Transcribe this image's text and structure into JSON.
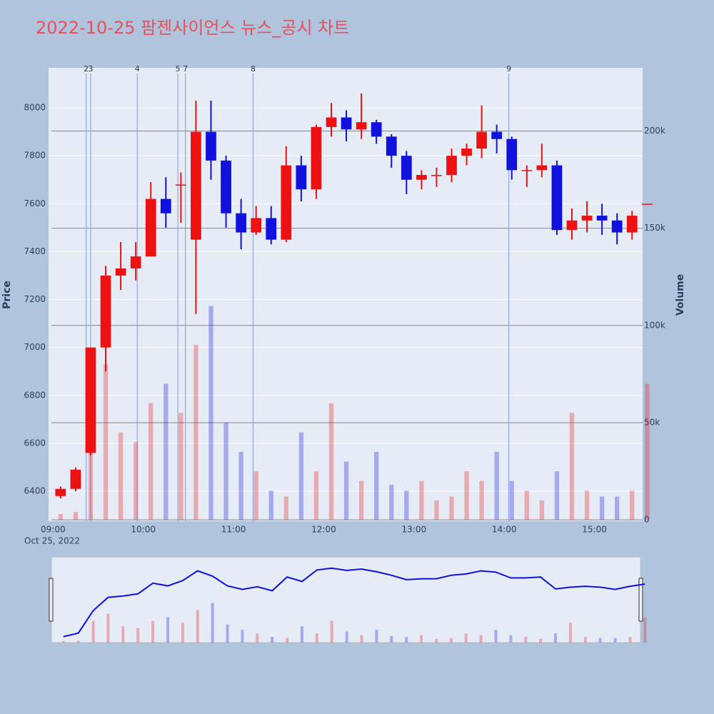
{
  "chart_data": {
    "type": "candlestick",
    "title": "2022-10-25 팜젠사이언스 뉴스_공시 차트",
    "y_label": "Price",
    "y2_label": "Volume",
    "x_date_label": "Oct 25, 2022",
    "x": [
      "09:00",
      "09:10",
      "09:20",
      "09:30",
      "09:40",
      "09:50",
      "10:00",
      "10:10",
      "10:20",
      "10:30",
      "10:40",
      "10:50",
      "11:00",
      "11:10",
      "11:20",
      "11:30",
      "11:40",
      "11:50",
      "12:00",
      "12:10",
      "12:20",
      "12:30",
      "12:40",
      "12:50",
      "13:00",
      "13:10",
      "13:20",
      "13:30",
      "13:40",
      "13:50",
      "14:00",
      "14:10",
      "14:20",
      "14:30",
      "14:40",
      "14:50",
      "15:00",
      "15:10",
      "15:20",
      "15:30"
    ],
    "open": [
      6380,
      6410,
      6560,
      7000,
      7300,
      7330,
      7380,
      7620,
      7680,
      7450,
      7900,
      7780,
      7560,
      7480,
      7540,
      7450,
      7760,
      7660,
      7920,
      7960,
      7910,
      7940,
      7880,
      7800,
      7700,
      7720,
      7720,
      7800,
      7830,
      7900,
      7870,
      7740,
      7740,
      7760,
      7490,
      7530,
      7550,
      7530,
      7480,
      7600
    ],
    "high": [
      6420,
      6500,
      7000,
      7340,
      7440,
      7440,
      7690,
      7710,
      7730,
      8030,
      8030,
      7800,
      7620,
      7590,
      7590,
      7840,
      7800,
      7930,
      8020,
      7990,
      8060,
      7950,
      7890,
      7820,
      7740,
      7750,
      7830,
      7850,
      8010,
      7930,
      7880,
      7760,
      7850,
      7780,
      7580,
      7610,
      7600,
      7560,
      7570,
      7600
    ],
    "low": [
      6370,
      6400,
      6550,
      6900,
      7240,
      7280,
      7380,
      7500,
      7520,
      7140,
      7700,
      7500,
      7410,
      7470,
      7430,
      7440,
      7610,
      7620,
      7880,
      7860,
      7870,
      7850,
      7750,
      7640,
      7660,
      7670,
      7690,
      7760,
      7790,
      7810,
      7700,
      7670,
      7710,
      7470,
      7450,
      7480,
      7470,
      7430,
      7450,
      7600
    ],
    "close": [
      6410,
      6490,
      7000,
      7300,
      7330,
      7380,
      7620,
      7560,
      7680,
      7900,
      7780,
      7560,
      7480,
      7540,
      7450,
      7760,
      7660,
      7920,
      7960,
      7910,
      7940,
      7880,
      7800,
      7700,
      7720,
      7720,
      7800,
      7830,
      7900,
      7870,
      7740,
      7740,
      7760,
      7490,
      7530,
      7550,
      7530,
      7480,
      7550,
      7600
    ],
    "volume": [
      3000,
      4000,
      60000,
      80000,
      45000,
      40000,
      60000,
      70000,
      55000,
      90000,
      110000,
      50000,
      35000,
      25000,
      15000,
      12000,
      45000,
      25000,
      60000,
      30000,
      20000,
      35000,
      18000,
      15000,
      20000,
      10000,
      12000,
      25000,
      20000,
      35000,
      20000,
      15000,
      10000,
      25000,
      55000,
      15000,
      12000,
      12000,
      15000,
      70000
    ],
    "up_color": "#ee1111",
    "down_color": "#1111dd",
    "xlim": [
      "08:57",
      "15:32"
    ],
    "xticks": [
      "09:00",
      "10:00",
      "11:00",
      "12:00",
      "13:00",
      "14:00",
      "15:00"
    ],
    "ylim": [
      6275,
      8167
    ],
    "yticks": [
      6400,
      6600,
      6800,
      7000,
      7200,
      7400,
      7600,
      7800,
      8000
    ],
    "y2lim": [
      -700,
      232500
    ],
    "y2ticks": [
      0,
      {
        "value": 50000,
        "label": "50k"
      },
      {
        "value": 100000,
        "label": "100k"
      },
      {
        "value": 150000,
        "label": "150k"
      },
      {
        "value": 200000,
        "label": "200k"
      }
    ],
    "grid": true,
    "markers": [
      {
        "label": "2",
        "x": "09:22"
      },
      {
        "label": "3",
        "x": "09:25"
      },
      {
        "label": "4",
        "x": "09:56"
      },
      {
        "label": "5",
        "x": "10:23"
      },
      {
        "label": "7",
        "x": "10:28"
      },
      {
        "label": "8",
        "x": "11:13"
      },
      {
        "label": "9",
        "x": "14:03"
      }
    ]
  }
}
